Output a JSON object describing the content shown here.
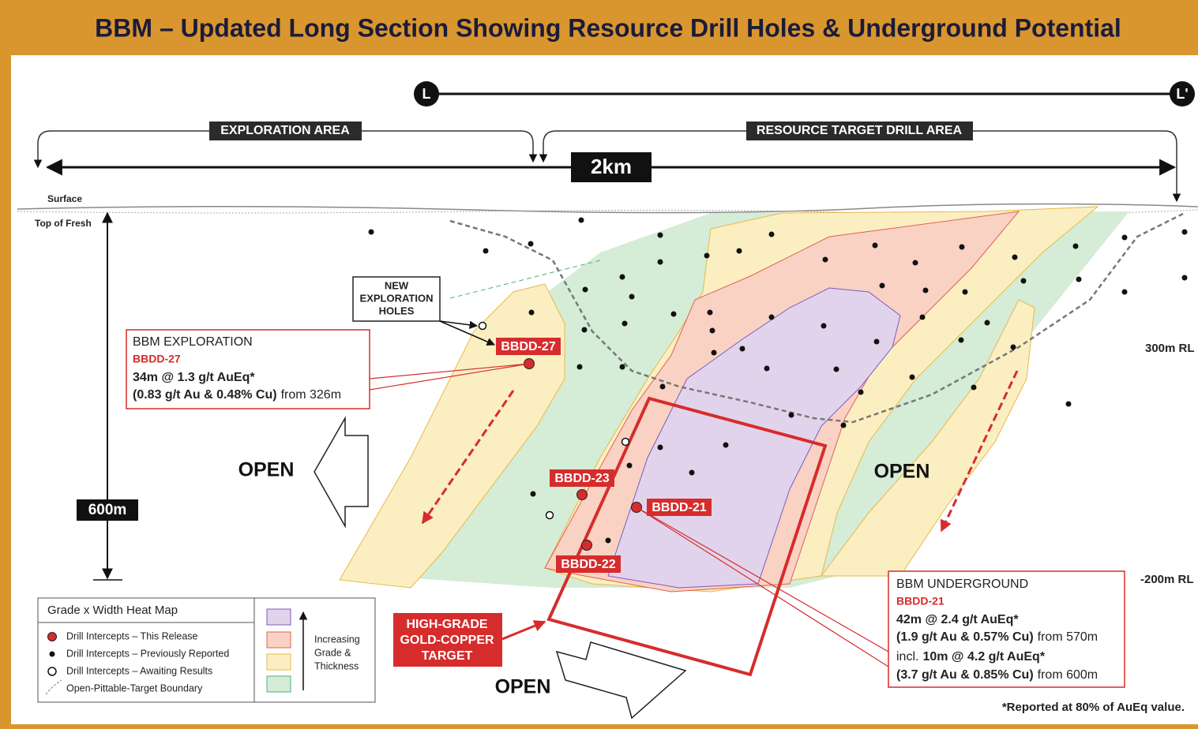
{
  "title": "BBM – Updated Long Section Showing Resource Drill Holes & Underground Potential",
  "section_markers": [
    "L",
    "L'"
  ],
  "areas": [
    "EXPLORATION AREA",
    "RESOURCE TARGET DRILL AREA"
  ],
  "scale": {
    "horizontal": "2km",
    "vertical": "600m"
  },
  "levels": [
    "Surface",
    "Top of Fresh"
  ],
  "rl_labels": [
    "300m RL",
    "-200m RL"
  ],
  "new_holes_label": [
    "NEW",
    "EXPLORATION",
    "HOLES"
  ],
  "holes": [
    "BBDD-27",
    "BBDD-23",
    "BBDD-21",
    "BBDD-22"
  ],
  "callouts": [
    {
      "heading": "BBM EXPLORATION",
      "hole": "BBDD-27",
      "lines": [
        [
          {
            "text": "34m @ 1.3 g/t AuEq*",
            "bold": true
          }
        ],
        [
          {
            "text": "(0.83 g/t Au & 0.48% Cu)",
            "bold": true
          },
          {
            "text": "from 326m",
            "bold": false
          }
        ]
      ]
    },
    {
      "heading": "BBM UNDERGROUND",
      "hole": "BBDD-21",
      "lines": [
        [
          {
            "text": "42m @ 2.4 g/t AuEq*",
            "bold": true
          }
        ],
        [
          {
            "text": "(1.9 g/t Au & 0.57% Cu)",
            "bold": true
          },
          {
            "text": "from 570m",
            "bold": false
          }
        ],
        [
          {
            "text": "incl.",
            "bold": false
          },
          {
            "text": "10m @ 4.2 g/t AuEq*",
            "bold": true
          }
        ],
        [
          {
            "text": "(3.7 g/t Au & 0.85% Cu)",
            "bold": true
          },
          {
            "text": "from 600m",
            "bold": false
          }
        ]
      ]
    }
  ],
  "open_labels": [
    "OPEN",
    "OPEN",
    "OPEN"
  ],
  "target_label": [
    "HIGH-GRADE",
    "GOLD-COPPER",
    "TARGET"
  ],
  "legend": {
    "title": "Grade x Width Heat Map",
    "items": [
      "Drill Intercepts – This Release",
      "Drill Intercepts – Previously Reported",
      "Drill Intercepts – Awaiting Results",
      "Open-Pittable-Target Boundary"
    ],
    "scale_label": [
      "Increasing",
      "Grade &",
      "Thickness"
    ]
  },
  "footnote": "*Reported at 80% of AuEq value."
}
